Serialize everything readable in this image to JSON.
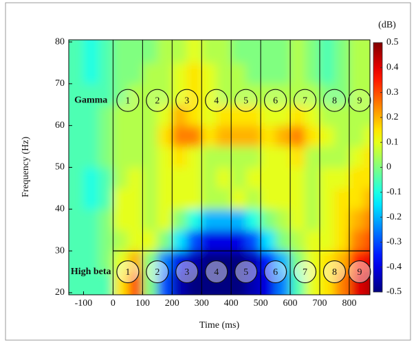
{
  "chart_data": {
    "type": "heatmap",
    "xlabel": "Time (ms)",
    "ylabel": "Frequency (Hz)",
    "colorbar_label": "(dB)",
    "xlim": [
      -150,
      870
    ],
    "ylim": [
      19.5,
      80.5
    ],
    "xticks": [
      -100,
      0,
      100,
      200,
      300,
      400,
      500,
      600,
      700,
      800
    ],
    "yticks": [
      20,
      30,
      40,
      50,
      60,
      70,
      80
    ],
    "zlim": [
      -0.5,
      0.5
    ],
    "zticks": [
      0.5,
      0.4,
      0.3,
      0.2,
      0.1,
      0,
      -0.1,
      -0.2,
      -0.3,
      -0.4,
      -0.5
    ],
    "colormap": "jet",
    "x": [
      -125,
      -75,
      -25,
      25,
      75,
      125,
      175,
      225,
      275,
      325,
      375,
      425,
      475,
      525,
      575,
      625,
      675,
      725,
      775,
      825,
      875
    ],
    "y": [
      22.5,
      27.5,
      32.5,
      37.5,
      42.5,
      47.5,
      52.5,
      57.5,
      62.5,
      67.5,
      72.5,
      77.5
    ],
    "z": [
      [
        -0.05,
        -0.05,
        -0.05,
        0.15,
        0.3,
        0,
        -0.3,
        -0.45,
        -0.5,
        -0.5,
        -0.5,
        -0.5,
        -0.45,
        -0.4,
        -0.25,
        -0.05,
        0.1,
        0.15,
        0.25,
        0.4,
        0.45
      ],
      [
        -0.05,
        -0.05,
        0,
        0.1,
        0.2,
        0,
        -0.25,
        -0.4,
        -0.45,
        -0.5,
        -0.5,
        -0.5,
        -0.45,
        -0.35,
        -0.2,
        0,
        0.1,
        0.15,
        0.2,
        0.35,
        0.4
      ],
      [
        -0.05,
        -0.05,
        0,
        0.05,
        0.1,
        0.1,
        0,
        -0.15,
        -0.3,
        -0.4,
        -0.4,
        -0.4,
        -0.3,
        -0.15,
        0,
        0.05,
        0.1,
        0.1,
        0.15,
        0.25,
        0.3
      ],
      [
        -0.05,
        -0.05,
        0,
        0.1,
        0.1,
        0.05,
        0.1,
        0,
        -0.1,
        -0.2,
        -0.2,
        -0.2,
        -0.1,
        0,
        0.05,
        0.1,
        0.05,
        0.1,
        0.15,
        0.2,
        0.25
      ],
      [
        -0.05,
        -0.1,
        -0.05,
        0.1,
        0.1,
        0.05,
        0.1,
        0.1,
        0.1,
        0.05,
        0.05,
        0.1,
        0.05,
        0.1,
        0.1,
        0.1,
        0.05,
        0.1,
        0.15,
        0.15,
        0.2
      ],
      [
        -0.05,
        -0.1,
        -0.05,
        0.05,
        0.1,
        0.05,
        0.1,
        0.1,
        0.1,
        0.05,
        0.1,
        0.05,
        0.1,
        0.1,
        0.1,
        0.1,
        0.05,
        0.1,
        0.1,
        0.15,
        0.15
      ],
      [
        -0.05,
        -0.05,
        0,
        0.05,
        0.05,
        0.05,
        0.1,
        0.15,
        0.1,
        0.05,
        0.05,
        0.05,
        0.05,
        0.1,
        0.1,
        0.15,
        0.05,
        0.05,
        0.05,
        0.1,
        0.15
      ],
      [
        -0.05,
        -0.05,
        0,
        0.05,
        0.05,
        0.05,
        0.15,
        0.25,
        0.25,
        0.15,
        0.2,
        0.2,
        0.2,
        0.15,
        0.2,
        0.25,
        0.15,
        0.1,
        0.05,
        0.05,
        0.1
      ],
      [
        -0.05,
        -0.05,
        0,
        0.05,
        0.05,
        0.05,
        0.1,
        0.2,
        0.15,
        0.1,
        0.15,
        0.15,
        0.15,
        0.1,
        0.1,
        0.15,
        0.1,
        0.05,
        0.05,
        0.05,
        0.05
      ],
      [
        -0.05,
        -0.05,
        -0.05,
        0,
        0.05,
        0.05,
        0.05,
        0.1,
        0.15,
        0.1,
        0.05,
        0.05,
        0.05,
        0.05,
        0.05,
        0.05,
        0.05,
        0,
        0,
        0.05,
        0.05
      ],
      [
        -0.05,
        -0.1,
        -0.05,
        0,
        0,
        0.05,
        0.05,
        0.1,
        0.15,
        0.1,
        0.05,
        0.05,
        0,
        0,
        0,
        0.05,
        0,
        -0.05,
        0,
        0.05,
        0.05
      ],
      [
        -0.05,
        -0.1,
        -0.05,
        0,
        0,
        0,
        0.05,
        0.05,
        0.1,
        0.05,
        0.05,
        0,
        0,
        0,
        0,
        0.05,
        0,
        -0.05,
        0,
        0.05,
        0.05
      ]
    ],
    "windows": {
      "starts": [
        0,
        100,
        200,
        300,
        400,
        500,
        600,
        700,
        800
      ],
      "labels": [
        "1",
        "2",
        "3",
        "4",
        "5",
        "6",
        "7",
        "8",
        "9"
      ]
    },
    "band_boundary": 30,
    "bands": [
      {
        "name": "Gamma",
        "center": 66
      },
      {
        "name": "High beta",
        "center": 25
      }
    ]
  }
}
